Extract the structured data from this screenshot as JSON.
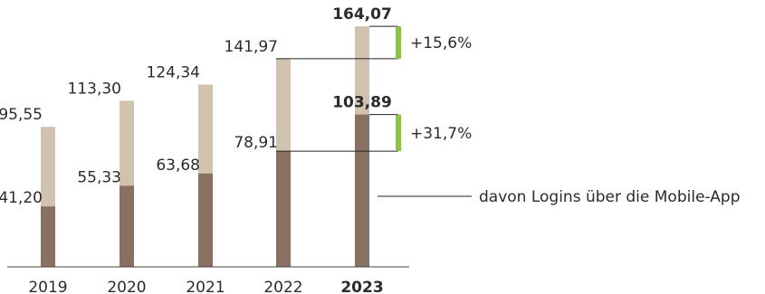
{
  "chart_data": {
    "type": "bar",
    "categories": [
      "2019",
      "2020",
      "2021",
      "2022",
      "2023"
    ],
    "series": [
      {
        "name": "",
        "values": [
          95.55,
          113.3,
          124.34,
          141.97,
          164.07
        ],
        "labels": [
          "95,55",
          "113,30",
          "124,34",
          "141,97",
          "164,07"
        ]
      },
      {
        "name": "davon Logins über die Mobile-App",
        "values": [
          41.2,
          55.33,
          63.68,
          78.91,
          103.89
        ],
        "labels": [
          "41,20",
          "55,33",
          "63,68",
          "78,91",
          "103,89"
        ]
      }
    ],
    "growth_annotations": [
      {
        "series": 0,
        "from": "2022",
        "to": "2023",
        "label": "+15,6%"
      },
      {
        "series": 1,
        "from": "2022",
        "to": "2023",
        "label": "+31,7%"
      }
    ],
    "highlight_category": "2023",
    "ylim": [
      0,
      170
    ],
    "colors": {
      "total": "#d1c1af",
      "mobile": "#8a7062",
      "growth_bar": "#8bc53f",
      "line": "#222222",
      "axis": "#444444"
    }
  }
}
